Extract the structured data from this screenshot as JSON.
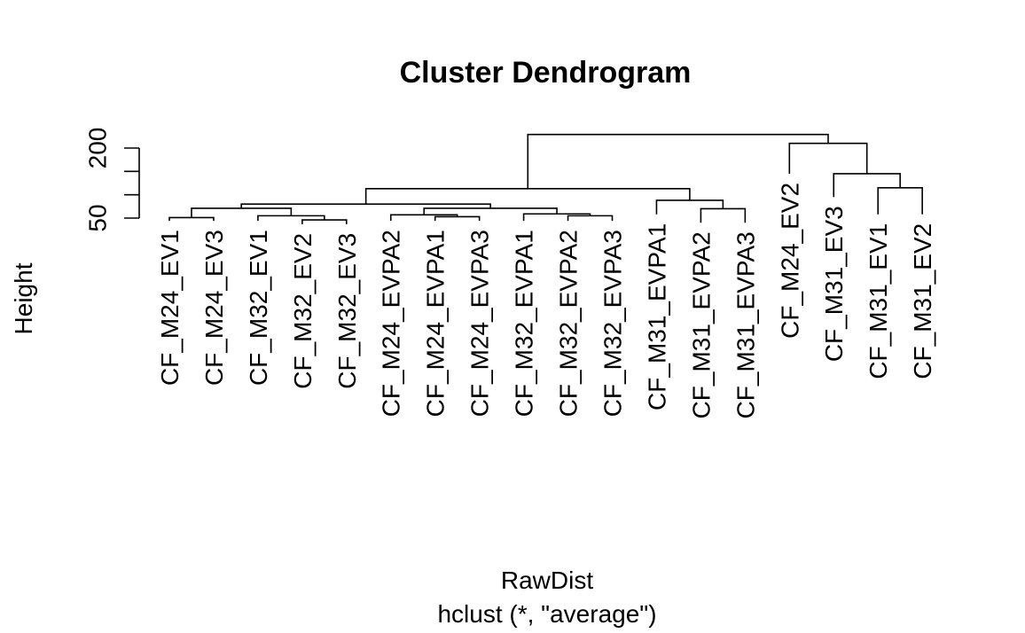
{
  "chart_data": {
    "type": "dendrogram",
    "title": "Cluster Dendrogram",
    "xlabel": "RawDist",
    "sublabel": "hclust (*, \"average\")",
    "ylabel": "Height",
    "yticks": [
      50,
      200
    ],
    "ylim": [
      50,
      200
    ],
    "leaves": [
      "CF_M24_EV1",
      "CF_M24_EV3",
      "CF_M32_EV1",
      "CF_M32_EV2",
      "CF_M32_EV3",
      "CF_M24_EVPA2",
      "CF_M24_EVPA1",
      "CF_M24_EVPA3",
      "CF_M32_EVPA1",
      "CF_M32_EVPA2",
      "CF_M32_EVPA3",
      "CF_M31_EVPA1",
      "CF_M31_EVPA2",
      "CF_M31_EVPA3",
      "CF_M24_EV2",
      "CF_M31_EV3",
      "CF_M31_EV1",
      "CF_M31_EV2"
    ],
    "leaf_heights": [
      44,
      44,
      44,
      37,
      37,
      44,
      44,
      44,
      44,
      44,
      44,
      58,
      40,
      40,
      145,
      95,
      58,
      58
    ],
    "merges": [
      {
        "left": 1,
        "right": 2,
        "height": 51
      },
      {
        "left": 4,
        "right": 5,
        "height": 46
      },
      {
        "left": 3,
        "right": "m2",
        "height": 55
      },
      {
        "left": "m1",
        "right": "m3",
        "height": 71
      },
      {
        "left": 7,
        "right": 8,
        "height": 53
      },
      {
        "left": 6,
        "right": "m5",
        "height": 57
      },
      {
        "left": 10,
        "right": 11,
        "height": 55
      },
      {
        "left": 9,
        "right": "m7",
        "height": 59
      },
      {
        "left": "m6",
        "right": "m8",
        "height": 71
      },
      {
        "left": "m4",
        "right": "m9",
        "height": 80
      },
      {
        "left": 13,
        "right": 14,
        "height": 70
      },
      {
        "left": 12,
        "right": "m11",
        "height": 88
      },
      {
        "left": "m10",
        "right": "m12",
        "height": 113
      },
      {
        "left": 17,
        "right": 18,
        "height": 115
      },
      {
        "left": 16,
        "right": "m14",
        "height": 145
      },
      {
        "left": 15,
        "right": "m15",
        "height": 210
      },
      {
        "left": "m13",
        "right": "m16",
        "height": 229
      }
    ]
  }
}
